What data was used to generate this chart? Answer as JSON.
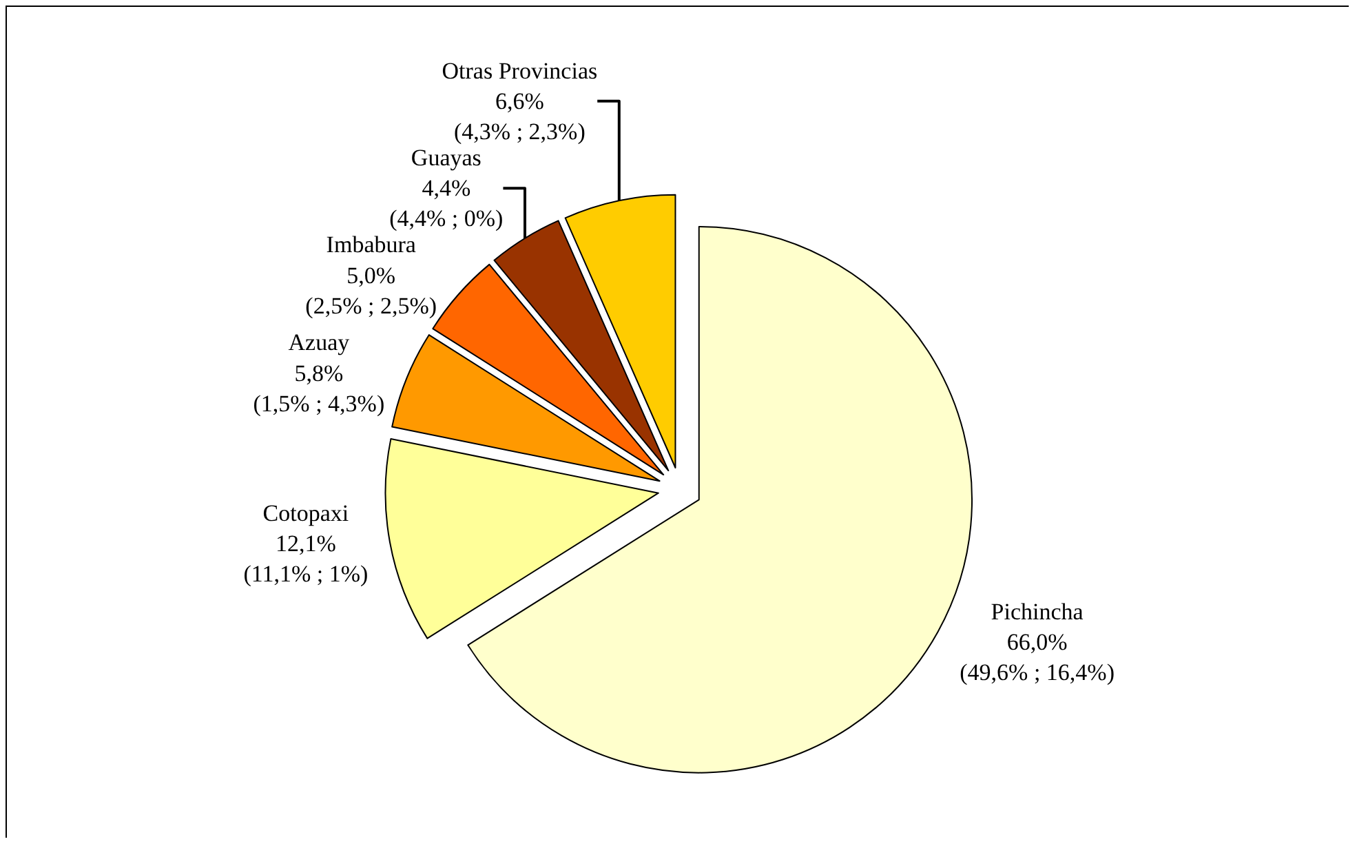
{
  "chart_data": {
    "type": "pie",
    "categories": [
      "Pichincha",
      "Cotopaxi",
      "Azuay",
      "Imbabura",
      "Guayas",
      "Otras Provincias"
    ],
    "values": [
      66.0,
      12.1,
      5.8,
      5.0,
      4.4,
      6.6
    ],
    "value_labels": [
      "66,0%\n(49,6% ; 16,4%)",
      "12,1%\n(11,1% ; 1%)",
      "5,8%\n(1,5% ; 4,3%)",
      "5,0%\n(2,5% ; 2,5%)",
      "4,4%\n(4,4% ; 0%)",
      "6,6%\n(4,3% ; 2,3%)"
    ],
    "colors": [
      "#ffffcc",
      "#ffff99",
      "#ff9900",
      "#ff6600",
      "#993300",
      "#ffcc00"
    ],
    "legend": false
  }
}
